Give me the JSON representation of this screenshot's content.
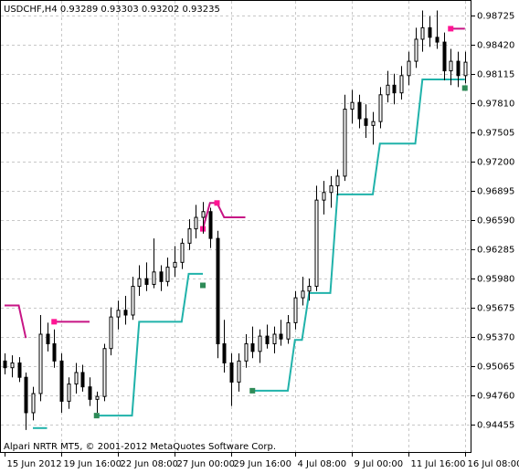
{
  "chart_data": {
    "type": "candlestick",
    "title": "USDCHF,H4  0.93289 0.93303 0.93202 0.93235",
    "footer": "Alpari NRTR MT5, © 2001-2012 MetaQuotes Software Corp.",
    "categories": [
      "15 Jun 2012",
      null,
      null,
      null,
      null,
      null,
      null,
      null,
      "19 Jun 16:00",
      null,
      null,
      null,
      null,
      null,
      null,
      null,
      "22 Jun 08:00",
      null,
      null,
      null,
      null,
      null,
      null,
      null,
      "27 Jun 00:00",
      null,
      null,
      null,
      null,
      null,
      null,
      null,
      "29 Jun 16:00",
      null,
      null,
      null,
      null,
      null,
      null,
      null,
      null,
      "4 Jul 08:00",
      null,
      null,
      null,
      null,
      null,
      null,
      null,
      "9 Jul 00:00",
      null,
      null,
      null,
      null,
      null,
      null,
      null,
      "11 Jul 16:00",
      null,
      null,
      null,
      null,
      null,
      null,
      null,
      "16 Jul 08:00"
    ],
    "open": [
      0.9512,
      0.9505,
      0.951,
      0.9495,
      0.9458,
      0.9478,
      0.954,
      0.953,
      0.9512,
      0.947,
      0.9488,
      0.95,
      0.9485,
      0.9472,
      0.9475,
      0.9525,
      0.9558,
      0.9565,
      0.956,
      0.959,
      0.9598,
      0.9592,
      0.9605,
      0.9595,
      0.961,
      0.9615,
      0.9635,
      0.965,
      0.9662,
      0.9668,
      0.964,
      0.953,
      0.951,
      0.949,
      0.9512,
      0.953,
      0.9522,
      0.9538,
      0.953,
      0.954,
      0.9535,
      0.9552,
      0.9578,
      0.9585,
      0.959,
      0.968,
      0.9688,
      0.9695,
      0.9705,
      0.9775,
      0.9782,
      0.9765,
      0.9758,
      0.9762,
      0.979,
      0.98,
      0.9792,
      0.981,
      0.9825,
      0.9848,
      0.986,
      0.985,
      0.9845,
      0.9815,
      0.9825,
      0.981
    ],
    "high": [
      0.952,
      0.9518,
      0.9516,
      0.95,
      0.9485,
      0.956,
      0.9552,
      0.9545,
      0.952,
      0.9495,
      0.951,
      0.9508,
      0.9495,
      0.948,
      0.953,
      0.9568,
      0.9575,
      0.958,
      0.96,
      0.9612,
      0.9615,
      0.964,
      0.9612,
      0.962,
      0.9632,
      0.964,
      0.966,
      0.9675,
      0.9678,
      0.9672,
      0.9648,
      0.9555,
      0.952,
      0.952,
      0.954,
      0.9548,
      0.9545,
      0.955,
      0.9548,
      0.9555,
      0.956,
      0.9585,
      0.96,
      0.9598,
      0.9695,
      0.97,
      0.9705,
      0.9712,
      0.979,
      0.9795,
      0.979,
      0.978,
      0.9772,
      0.9798,
      0.9815,
      0.9812,
      0.982,
      0.9835,
      0.986,
      0.9878,
      0.9872,
      0.9878,
      0.9855,
      0.9838,
      0.9835,
      0.9835
    ],
    "low": [
      0.9498,
      0.9495,
      0.949,
      0.944,
      0.945,
      0.947,
      0.9522,
      0.9505,
      0.9458,
      0.9462,
      0.9478,
      0.948,
      0.9465,
      0.9458,
      0.947,
      0.9518,
      0.9545,
      0.955,
      0.9555,
      0.958,
      0.9585,
      0.9588,
      0.9585,
      0.959,
      0.96,
      0.9608,
      0.9628,
      0.964,
      0.9645,
      0.963,
      0.9515,
      0.95,
      0.9465,
      0.948,
      0.9505,
      0.9515,
      0.951,
      0.9525,
      0.952,
      0.9528,
      0.953,
      0.9545,
      0.957,
      0.9575,
      0.9585,
      0.9665,
      0.9672,
      0.9685,
      0.97,
      0.976,
      0.9755,
      0.9745,
      0.9738,
      0.9755,
      0.9782,
      0.978,
      0.9785,
      0.98,
      0.9818,
      0.9835,
      0.984,
      0.9838,
      0.9805,
      0.98,
      0.9798,
      0.9802
    ],
    "close": [
      0.9505,
      0.951,
      0.9495,
      0.9458,
      0.9478,
      0.954,
      0.953,
      0.9512,
      0.947,
      0.9488,
      0.95,
      0.9485,
      0.9472,
      0.9475,
      0.9525,
      0.9558,
      0.9565,
      0.956,
      0.959,
      0.9598,
      0.9592,
      0.9605,
      0.9595,
      0.961,
      0.9615,
      0.9635,
      0.965,
      0.9662,
      0.9668,
      0.964,
      0.953,
      0.951,
      0.949,
      0.9512,
      0.953,
      0.9522,
      0.9538,
      0.953,
      0.954,
      0.9535,
      0.9552,
      0.9578,
      0.9585,
      0.959,
      0.968,
      0.9688,
      0.9695,
      0.9705,
      0.9775,
      0.9782,
      0.9765,
      0.9758,
      0.9762,
      0.979,
      0.98,
      0.9792,
      0.981,
      0.9825,
      0.9848,
      0.986,
      0.985,
      0.9845,
      0.9815,
      0.9825,
      0.981,
      0.9824
    ],
    "support": {
      "color": "#20b2aa",
      "values": [
        null,
        null,
        null,
        null,
        0.9442,
        0.9442,
        0.9442,
        null,
        null,
        null,
        null,
        null,
        null,
        0.9455,
        0.9455,
        0.9455,
        0.9455,
        0.9455,
        0.9455,
        0.9553,
        0.9553,
        0.9553,
        0.9553,
        0.9553,
        0.9553,
        0.9553,
        0.9603,
        0.9603,
        0.9603,
        null,
        null,
        null,
        null,
        null,
        null,
        0.9481,
        0.9481,
        0.9481,
        0.9481,
        0.9481,
        0.9481,
        0.9534,
        0.9534,
        0.9583,
        0.9583,
        0.9583,
        0.9583,
        0.9686,
        0.9686,
        0.9686,
        0.9686,
        0.9686,
        0.9686,
        0.9739,
        0.9739,
        0.9739,
        0.9739,
        0.9739,
        0.9739,
        0.9806,
        0.9806,
        0.9806,
        0.9806,
        0.9806,
        0.9806,
        0.9806
      ]
    },
    "resistance": {
      "color": "#c71585",
      "values": [
        0.957,
        0.957,
        0.957,
        0.9536,
        null,
        null,
        null,
        0.9553,
        0.9553,
        0.9553,
        0.9553,
        0.9553,
        0.9553,
        null,
        null,
        null,
        null,
        null,
        null,
        null,
        null,
        null,
        null,
        null,
        null,
        null,
        null,
        null,
        0.965,
        0.9677,
        0.9677,
        0.9662,
        0.9662,
        0.9662,
        0.9662,
        null,
        null,
        null,
        null,
        null,
        null,
        null,
        null,
        null,
        null,
        null,
        null,
        null,
        null,
        null,
        null,
        null,
        null,
        null,
        null,
        null,
        null,
        null,
        null,
        null,
        null,
        null,
        null,
        0.9859,
        0.9859,
        0.9859
      ]
    },
    "support_signals": {
      "color": "#2e8b57",
      "values": [
        null,
        null,
        null,
        null,
        null,
        null,
        null,
        null,
        null,
        null,
        null,
        null,
        null,
        0.9455,
        null,
        null,
        null,
        null,
        null,
        null,
        null,
        null,
        null,
        null,
        null,
        null,
        null,
        null,
        0.9591,
        null,
        null,
        null,
        null,
        null,
        null,
        0.9481,
        null,
        null,
        null,
        null,
        null,
        null,
        null,
        null,
        null,
        null,
        null,
        null,
        null,
        null,
        null,
        null,
        null,
        null,
        null,
        null,
        null,
        null,
        null,
        null,
        null,
        null,
        null,
        null,
        null,
        0.9797
      ]
    },
    "resistance_signals": {
      "color": "#ff1493",
      "values": [
        null,
        null,
        null,
        null,
        null,
        null,
        null,
        0.9553,
        null,
        null,
        null,
        null,
        null,
        null,
        null,
        null,
        null,
        null,
        null,
        null,
        null,
        null,
        null,
        null,
        null,
        null,
        null,
        null,
        0.965,
        null,
        0.9677,
        null,
        null,
        null,
        null,
        null,
        null,
        null,
        null,
        null,
        null,
        null,
        null,
        null,
        null,
        null,
        null,
        null,
        null,
        null,
        null,
        null,
        null,
        null,
        null,
        null,
        null,
        null,
        null,
        null,
        null,
        null,
        null,
        0.9859,
        null,
        null
      ]
    },
    "ylim": [
      0.9417,
      0.9888
    ],
    "yticks": [
      0.98725,
      {
        "value": 0.9842,
        "label": "0.98420"
      },
      0.98115,
      {
        "value": 0.9781,
        "label": "0.97810"
      },
      0.97505,
      {
        "value": 0.972,
        "label": "0.97200"
      },
      0.96895,
      {
        "value": 0.9659,
        "label": "0.96590"
      },
      0.96285,
      {
        "value": 0.9598,
        "label": "0.95980"
      },
      0.95675,
      {
        "value": 0.9537,
        "label": "0.95370"
      },
      0.95065,
      {
        "value": 0.9476,
        "label": "0.94760"
      },
      0.94455
    ],
    "grid": true
  }
}
